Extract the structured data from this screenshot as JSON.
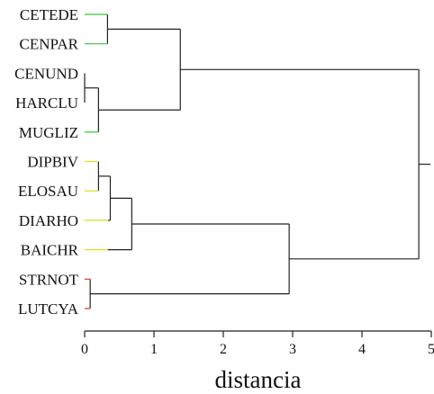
{
  "dendrogram": {
    "leaves": [
      {
        "label": "CETEDE",
        "cluster": "green"
      },
      {
        "label": "CENPAR",
        "cluster": "green"
      },
      {
        "label": "CENUND",
        "cluster": "green"
      },
      {
        "label": "HARCLU",
        "cluster": "green"
      },
      {
        "label": "MUGLIZ",
        "cluster": "green"
      },
      {
        "label": "DIPBIV",
        "cluster": "yellow"
      },
      {
        "label": "ELOSAU",
        "cluster": "yellow"
      },
      {
        "label": "DIARHO",
        "cluster": "yellow"
      },
      {
        "label": "BAICHR",
        "cluster": "yellow"
      },
      {
        "label": "STRNOT",
        "cluster": "red"
      },
      {
        "label": "LUTCYA",
        "cluster": "red"
      }
    ],
    "merges": [
      {
        "a": "L0",
        "b": "L1",
        "height": 0.33
      },
      {
        "a": "L2",
        "b": "L3",
        "height": 0.0
      },
      {
        "a": "M1",
        "b": "L4",
        "height": 0.2
      },
      {
        "a": "M0",
        "b": "M2",
        "height": 1.38
      },
      {
        "a": "L5",
        "b": "L6",
        "height": 0.2
      },
      {
        "a": "M4",
        "b": "L7",
        "height": 0.37
      },
      {
        "a": "M5",
        "b": "L8",
        "height": 0.68
      },
      {
        "a": "L9",
        "b": "L10",
        "height": 0.08
      },
      {
        "a": "M6",
        "b": "M7",
        "height": 2.95
      },
      {
        "a": "M3",
        "b": "M8",
        "height": 4.82
      }
    ],
    "cluster_colors": {
      "green": "#33cc33",
      "yellow": "#d9e01a",
      "red": "#e03030"
    },
    "xaxis": {
      "title": "distancia",
      "ticks": [
        "0",
        "1",
        "2",
        "3",
        "4",
        "5"
      ],
      "range": [
        0,
        5
      ]
    }
  }
}
